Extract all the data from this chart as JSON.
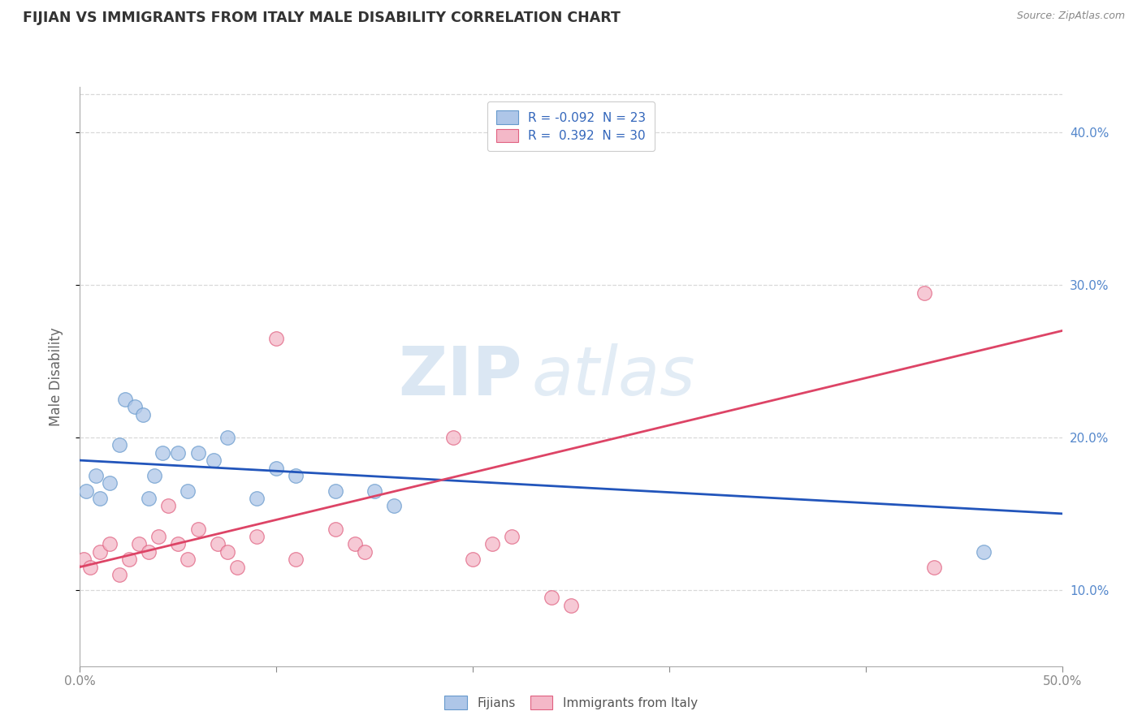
{
  "title": "FIJIAN VS IMMIGRANTS FROM ITALY MALE DISABILITY CORRELATION CHART",
  "source": "Source: ZipAtlas.com",
  "ylabel": "Male Disability",
  "watermark_bold": "ZIP",
  "watermark_light": "atlas",
  "series": [
    {
      "name": "Fijians",
      "color": "#aec6e8",
      "edge_color": "#6699cc",
      "R": -0.092,
      "N": 23,
      "x": [
        0.3,
        0.8,
        1.0,
        1.5,
        2.0,
        2.3,
        2.8,
        3.2,
        3.5,
        3.8,
        4.2,
        5.0,
        5.5,
        6.0,
        6.8,
        7.5,
        9.0,
        10.0,
        11.0,
        13.0,
        15.0,
        16.0,
        46.0
      ],
      "y": [
        16.5,
        17.5,
        16.0,
        17.0,
        19.5,
        22.5,
        22.0,
        21.5,
        16.0,
        17.5,
        19.0,
        19.0,
        16.5,
        19.0,
        18.5,
        20.0,
        16.0,
        18.0,
        17.5,
        16.5,
        16.5,
        15.5,
        12.5
      ]
    },
    {
      "name": "Immigrants from Italy",
      "color": "#f4b8c8",
      "edge_color": "#e06080",
      "R": 0.392,
      "N": 30,
      "x": [
        0.2,
        0.5,
        1.0,
        1.5,
        2.0,
        2.5,
        3.0,
        3.5,
        4.0,
        4.5,
        5.0,
        5.5,
        6.0,
        7.0,
        7.5,
        8.0,
        9.0,
        10.0,
        11.0,
        13.0,
        14.0,
        14.5,
        19.0,
        20.0,
        21.0,
        22.0,
        24.0,
        25.0,
        43.0,
        43.5
      ],
      "y": [
        12.0,
        11.5,
        12.5,
        13.0,
        11.0,
        12.0,
        13.0,
        12.5,
        13.5,
        15.5,
        13.0,
        12.0,
        14.0,
        13.0,
        12.5,
        11.5,
        13.5,
        26.5,
        12.0,
        14.0,
        13.0,
        12.5,
        20.0,
        12.0,
        13.0,
        13.5,
        9.5,
        9.0,
        29.5,
        11.5
      ]
    }
  ],
  "regression_fijian": {
    "color": "#2255bb",
    "x_start": 0.0,
    "x_end": 50.0,
    "y_start": 18.5,
    "y_end": 15.0
  },
  "regression_italy": {
    "color": "#dd4466",
    "x_start": 0.0,
    "x_end": 50.0,
    "y_start": 11.5,
    "y_end": 27.0
  },
  "xlim": [
    0,
    50
  ],
  "ylim_min": 5,
  "ylim_max": 43,
  "yticks": [
    10.0,
    20.0,
    30.0,
    40.0
  ],
  "ytick_labels": [
    "10.0%",
    "20.0%",
    "30.0%",
    "40.0%"
  ],
  "grid_color": "#d8d8d8",
  "background_color": "#ffffff",
  "legend_R_color": "#3366bb",
  "title_color": "#333333",
  "right_tick_color": "#5588cc",
  "axis_tick_color": "#888888"
}
